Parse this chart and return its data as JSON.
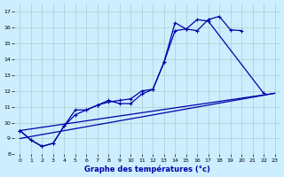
{
  "background_color": "#cceeff",
  "grid_color": "#aacccc",
  "line_color": "#0000aa",
  "xlabel": "Graphe des températures (°c)",
  "xlim": [
    -0.5,
    23.5
  ],
  "ylim": [
    8,
    17.5
  ],
  "yticks": [
    8,
    9,
    10,
    11,
    12,
    13,
    14,
    15,
    16,
    17
  ],
  "xticks": [
    0,
    1,
    2,
    3,
    4,
    5,
    6,
    7,
    8,
    9,
    10,
    11,
    12,
    13,
    14,
    15,
    16,
    17,
    18,
    19,
    20,
    21,
    22,
    23
  ],
  "line1_x": [
    0,
    1,
    2,
    3,
    4,
    5,
    6,
    7,
    8,
    9,
    10,
    11,
    12,
    13,
    14,
    15,
    16,
    17,
    18,
    19,
    20,
    21,
    22,
    23
  ],
  "line1_y": [
    9.5,
    8.9,
    8.5,
    8.7,
    9.8,
    10.8,
    10.8,
    11.1,
    11.3,
    11.4,
    11.5,
    12.0,
    12.1,
    13.8,
    16.3,
    15.9,
    15.8,
    16.5,
    16.7,
    15.85,
    15.8,
    null,
    null,
    null
  ],
  "line2_x": [
    0,
    1,
    2,
    3,
    4,
    5,
    6,
    7,
    8,
    9,
    10,
    11,
    12,
    13,
    14,
    15,
    16,
    17,
    18,
    19,
    20,
    21,
    22,
    23
  ],
  "line2_y": [
    9.5,
    8.9,
    8.5,
    8.7,
    9.8,
    10.5,
    10.8,
    11.1,
    11.4,
    11.2,
    11.2,
    11.8,
    12.1,
    13.8,
    15.8,
    15.9,
    16.5,
    16.4,
    null,
    null,
    null,
    null,
    11.85,
    null
  ],
  "line3_x": [
    0,
    23
  ],
  "line3_y": [
    9.5,
    11.85
  ],
  "line4_x": [
    0,
    23
  ],
  "line4_y": [
    9.0,
    11.85
  ]
}
